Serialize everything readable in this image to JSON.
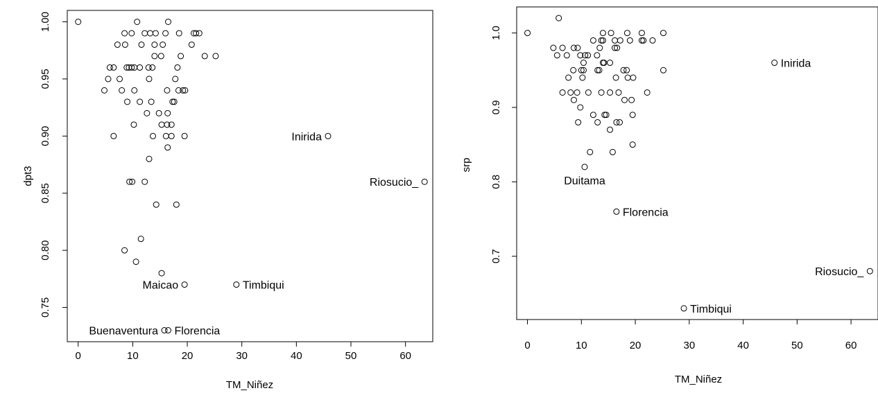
{
  "chart_data": [
    {
      "type": "scatter",
      "title": "",
      "xlabel": "TM_Niñez",
      "ylabel": "dpt3",
      "xlim": [
        -2,
        65
      ],
      "ylim": [
        0.72,
        1.01
      ],
      "xticks": [
        "0",
        "10",
        "20",
        "30",
        "40",
        "50",
        "60"
      ],
      "yticks": [
        "0.75",
        "0.80",
        "0.85",
        "0.90",
        "0.95",
        "1.00"
      ],
      "grid": false,
      "points": [
        [
          0,
          1.0
        ],
        [
          10.8,
          1.0
        ],
        [
          16.5,
          1.0
        ],
        [
          8.5,
          0.99
        ],
        [
          9.8,
          0.99
        ],
        [
          12.2,
          0.99
        ],
        [
          13.2,
          0.99
        ],
        [
          14.2,
          0.99
        ],
        [
          16,
          0.99
        ],
        [
          18.5,
          0.99
        ],
        [
          21.2,
          0.99
        ],
        [
          21.6,
          0.99
        ],
        [
          22.2,
          0.99
        ],
        [
          7.2,
          0.98
        ],
        [
          8.6,
          0.98
        ],
        [
          11.6,
          0.98
        ],
        [
          14,
          0.98
        ],
        [
          15.5,
          0.98
        ],
        [
          20.8,
          0.98
        ],
        [
          14,
          0.97
        ],
        [
          15.2,
          0.97
        ],
        [
          18.8,
          0.97
        ],
        [
          23.2,
          0.97
        ],
        [
          25.2,
          0.97
        ],
        [
          5.8,
          0.96
        ],
        [
          6.5,
          0.96
        ],
        [
          8.9,
          0.96
        ],
        [
          9.3,
          0.96
        ],
        [
          9.8,
          0.96
        ],
        [
          10.3,
          0.96
        ],
        [
          11.3,
          0.96
        ],
        [
          12.9,
          0.96
        ],
        [
          13.6,
          0.96
        ],
        [
          18.2,
          0.96
        ],
        [
          5.5,
          0.95
        ],
        [
          7.6,
          0.95
        ],
        [
          13,
          0.95
        ],
        [
          17.8,
          0.95
        ],
        [
          4.8,
          0.94
        ],
        [
          8,
          0.94
        ],
        [
          10.3,
          0.94
        ],
        [
          16.3,
          0.94
        ],
        [
          18.4,
          0.94
        ],
        [
          19.2,
          0.94
        ],
        [
          19.6,
          0.94
        ],
        [
          9,
          0.93
        ],
        [
          11.3,
          0.93
        ],
        [
          13.4,
          0.93
        ],
        [
          17.3,
          0.93
        ],
        [
          17.6,
          0.93
        ],
        [
          12.6,
          0.92
        ],
        [
          14.8,
          0.92
        ],
        [
          16.4,
          0.92
        ],
        [
          10.2,
          0.91
        ],
        [
          15.3,
          0.91
        ],
        [
          16.3,
          0.91
        ],
        [
          17.1,
          0.91
        ],
        [
          6.5,
          0.9
        ],
        [
          13.7,
          0.9
        ],
        [
          16.1,
          0.9
        ],
        [
          17.1,
          0.9
        ],
        [
          19.5,
          0.9
        ],
        [
          45.8,
          0.9
        ],
        [
          16.4,
          0.89
        ],
        [
          13,
          0.88
        ],
        [
          9.4,
          0.86
        ],
        [
          9.9,
          0.86
        ],
        [
          12.2,
          0.86
        ],
        [
          63.5,
          0.86
        ],
        [
          14.3,
          0.84
        ],
        [
          18,
          0.84
        ],
        [
          11.5,
          0.81
        ],
        [
          8.5,
          0.8
        ],
        [
          10.6,
          0.79
        ],
        [
          15.3,
          0.78
        ],
        [
          19.5,
          0.77
        ],
        [
          29,
          0.77
        ],
        [
          15.8,
          0.73
        ],
        [
          16.5,
          0.73
        ]
      ],
      "annotations": [
        {
          "text": "Inirida",
          "x": 45.8,
          "y": 0.9,
          "side": "left"
        },
        {
          "text": "Riosucio_",
          "x": 63.5,
          "y": 0.86,
          "side": "left"
        },
        {
          "text": "Maicao",
          "x": 19.5,
          "y": 0.77,
          "side": "left"
        },
        {
          "text": "Timbiqui",
          "x": 29,
          "y": 0.77,
          "side": "right"
        },
        {
          "text": "Buenaventura",
          "x": 15.8,
          "y": 0.73,
          "side": "left"
        },
        {
          "text": "Florencia",
          "x": 16.5,
          "y": 0.73,
          "side": "right"
        }
      ]
    },
    {
      "type": "scatter",
      "title": "",
      "xlabel": "TM_Niñez",
      "ylabel": "srp",
      "xlim": [
        -2,
        65
      ],
      "ylim": [
        0.615,
        1.035
      ],
      "xticks": [
        "0",
        "10",
        "20",
        "30",
        "40",
        "50",
        "60"
      ],
      "yticks": [
        "0.7",
        "0.8",
        "0.9",
        "1.0"
      ],
      "grid": false,
      "points": [
        [
          5.8,
          1.02
        ],
        [
          0,
          1.0
        ],
        [
          14,
          1.0
        ],
        [
          15.5,
          1.0
        ],
        [
          18.5,
          1.0
        ],
        [
          21.2,
          1.0
        ],
        [
          25.2,
          1.0
        ],
        [
          12.2,
          0.99
        ],
        [
          13.7,
          0.99
        ],
        [
          14,
          0.99
        ],
        [
          16.2,
          0.99
        ],
        [
          17.2,
          0.99
        ],
        [
          19,
          0.99
        ],
        [
          21.2,
          0.99
        ],
        [
          21.5,
          0.99
        ],
        [
          23.2,
          0.99
        ],
        [
          4.8,
          0.98
        ],
        [
          6.5,
          0.98
        ],
        [
          8.6,
          0.98
        ],
        [
          9.3,
          0.98
        ],
        [
          13.4,
          0.98
        ],
        [
          16.2,
          0.98
        ],
        [
          16.6,
          0.98
        ],
        [
          5.5,
          0.97
        ],
        [
          7.3,
          0.97
        ],
        [
          9.8,
          0.97
        ],
        [
          10.7,
          0.97
        ],
        [
          11.2,
          0.97
        ],
        [
          12.9,
          0.97
        ],
        [
          10.4,
          0.96
        ],
        [
          14,
          0.96
        ],
        [
          14.2,
          0.96
        ],
        [
          15.3,
          0.96
        ],
        [
          8.5,
          0.95
        ],
        [
          10,
          0.95
        ],
        [
          10.4,
          0.95
        ],
        [
          13,
          0.95
        ],
        [
          13.3,
          0.95
        ],
        [
          17.8,
          0.95
        ],
        [
          18.4,
          0.95
        ],
        [
          25.2,
          0.95
        ],
        [
          7.6,
          0.94
        ],
        [
          10.2,
          0.94
        ],
        [
          16.4,
          0.94
        ],
        [
          18.6,
          0.94
        ],
        [
          19.6,
          0.94
        ],
        [
          6.5,
          0.92
        ],
        [
          8,
          0.92
        ],
        [
          9.2,
          0.92
        ],
        [
          11.3,
          0.92
        ],
        [
          13.7,
          0.92
        ],
        [
          15.3,
          0.92
        ],
        [
          16.9,
          0.92
        ],
        [
          22.2,
          0.92
        ],
        [
          8.6,
          0.91
        ],
        [
          18,
          0.91
        ],
        [
          19.3,
          0.91
        ],
        [
          9.8,
          0.9
        ],
        [
          12.2,
          0.89
        ],
        [
          14.3,
          0.89
        ],
        [
          14.6,
          0.89
        ],
        [
          19.5,
          0.89
        ],
        [
          9.4,
          0.88
        ],
        [
          13,
          0.88
        ],
        [
          16.5,
          0.88
        ],
        [
          17.1,
          0.88
        ],
        [
          15.3,
          0.87
        ],
        [
          19.5,
          0.85
        ],
        [
          11.6,
          0.84
        ],
        [
          15.8,
          0.84
        ],
        [
          10.6,
          0.82
        ],
        [
          16.5,
          0.76
        ],
        [
          63.5,
          0.68
        ],
        [
          29,
          0.63
        ],
        [
          45.8,
          0.96
        ]
      ],
      "annotations": [
        {
          "text": "Inirida",
          "x": 45.8,
          "y": 0.96,
          "side": "right"
        },
        {
          "text": "Duitama",
          "x": 10.6,
          "y": 0.82,
          "side": "below"
        },
        {
          "text": "Florencia",
          "x": 16.5,
          "y": 0.76,
          "side": "right"
        },
        {
          "text": "Riosucio_",
          "x": 63.5,
          "y": 0.68,
          "side": "left"
        },
        {
          "text": "Timbiqui",
          "x": 29,
          "y": 0.63,
          "side": "right"
        }
      ]
    }
  ]
}
